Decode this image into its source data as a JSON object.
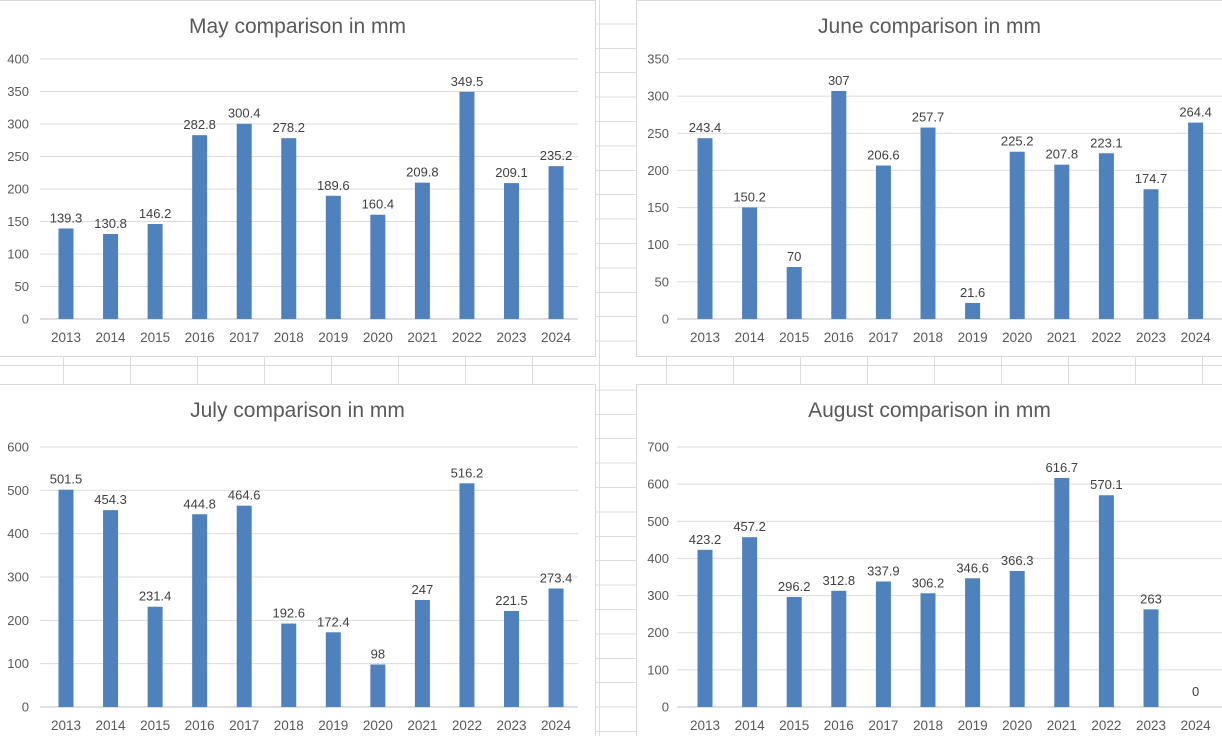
{
  "app": {
    "context": "spreadsheet-chart-sheet"
  },
  "colors": {
    "bar": "#4F81BD",
    "title_text": "#595959",
    "tick_text": "#595959",
    "data_label_text": "#404040",
    "gridline": "#DBDBDB",
    "axis_line": "#BFBFBF",
    "chart_border": "#D7D7D7",
    "sheet_gridline": "#DCDCDC",
    "background": "#FFFFFF"
  },
  "chart_data": [
    {
      "type": "bar",
      "title": "May comparison in mm",
      "categories": [
        "2013",
        "2014",
        "2015",
        "2016",
        "2017",
        "2018",
        "2019",
        "2020",
        "2021",
        "2022",
        "2023",
        "2024"
      ],
      "values": [
        139.3,
        130.8,
        146.2,
        282.8,
        300.4,
        278.2,
        189.6,
        160.4,
        209.8,
        349.5,
        209.1,
        235.2
      ],
      "xlabel": "",
      "ylabel": "",
      "ylim": [
        0,
        400
      ],
      "ytick_step": 50,
      "grid": true,
      "legend": "none",
      "data_labels": true
    },
    {
      "type": "bar",
      "title": "June comparison in mm",
      "categories": [
        "2013",
        "2014",
        "2015",
        "2016",
        "2017",
        "2018",
        "2019",
        "2020",
        "2021",
        "2022",
        "2023",
        "2024"
      ],
      "values": [
        243.4,
        150.2,
        70,
        307,
        206.6,
        257.7,
        21.6,
        225.2,
        207.8,
        223.1,
        174.7,
        264.4
      ],
      "xlabel": "",
      "ylabel": "",
      "ylim": [
        0,
        350
      ],
      "ytick_step": 50,
      "grid": true,
      "legend": "none",
      "data_labels": true
    },
    {
      "type": "bar",
      "title": "July comparison in mm",
      "categories": [
        "2013",
        "2014",
        "2015",
        "2016",
        "2017",
        "2018",
        "2019",
        "2020",
        "2021",
        "2022",
        "2023",
        "2024"
      ],
      "values": [
        501.5,
        454.3,
        231.4,
        444.8,
        464.6,
        192.6,
        172.4,
        98,
        247,
        516.2,
        221.5,
        273.4
      ],
      "xlabel": "",
      "ylabel": "",
      "ylim": [
        0,
        600
      ],
      "ytick_step": 100,
      "grid": true,
      "legend": "none",
      "data_labels": true
    },
    {
      "type": "bar",
      "title": "August comparison in mm",
      "categories": [
        "2013",
        "2014",
        "2015",
        "2016",
        "2017",
        "2018",
        "2019",
        "2020",
        "2021",
        "2022",
        "2023",
        "2024"
      ],
      "values": [
        423.2,
        457.2,
        296.2,
        312.8,
        337.9,
        306.2,
        346.6,
        366.3,
        616.7,
        570.1,
        263,
        0
      ],
      "xlabel": "",
      "ylabel": "",
      "ylim": [
        0,
        700
      ],
      "ytick_step": 100,
      "grid": true,
      "legend": "none",
      "data_labels": true
    }
  ]
}
